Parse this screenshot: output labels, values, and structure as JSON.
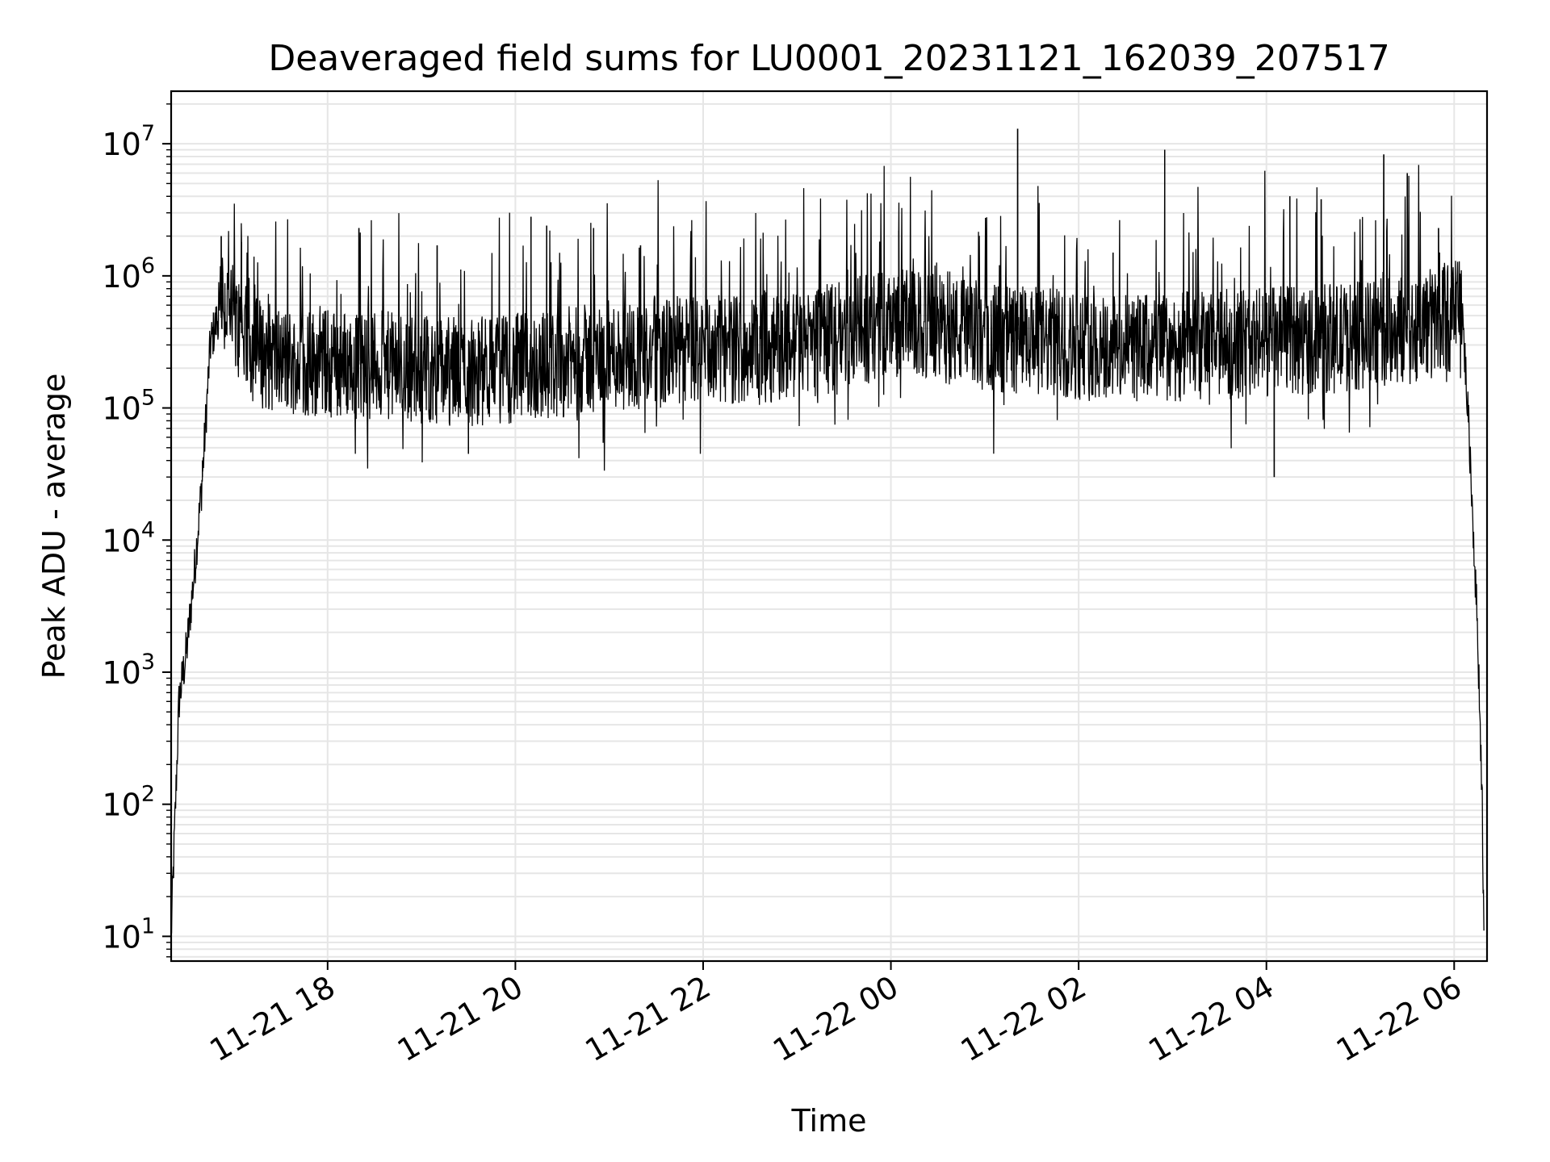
{
  "chart_data": {
    "type": "line",
    "title": "Deaveraged field sums for LU0001_20231121_162039_207517",
    "xlabel": "Time",
    "ylabel": "Peak ADU - average",
    "yscale": "log",
    "ylim": [
      6.5,
      25000000
    ],
    "xlim": [
      "2023-11-21 16:20",
      "2023-11-22 06:21"
    ],
    "grid": true,
    "line_color": "#000000",
    "grid_color": "#e6e6e6",
    "x_ticks": [
      "11-21 18",
      "11-21 20",
      "11-21 22",
      "11-22 00",
      "11-22 02",
      "11-22 04",
      "11-22 06"
    ],
    "x_tick_times": [
      "2023-11-21 18:00",
      "2023-11-21 20:00",
      "2023-11-21 22:00",
      "2023-11-22 00:00",
      "2023-11-22 02:00",
      "2023-11-22 04:00",
      "2023-11-22 06:00"
    ],
    "y_ticks": [
      {
        "base": "10",
        "exp": "1",
        "value": 10
      },
      {
        "base": "10",
        "exp": "2",
        "value": 100
      },
      {
        "base": "10",
        "exp": "3",
        "value": 1000
      },
      {
        "base": "10",
        "exp": "4",
        "value": 10000
      },
      {
        "base": "10",
        "exp": "5",
        "value": 100000
      },
      {
        "base": "10",
        "exp": "6",
        "value": 1000000
      },
      {
        "base": "10",
        "exp": "7",
        "value": 10000000
      }
    ],
    "series": [
      {
        "x": [
          "2023-11-21 16:20",
          "2023-11-21 16:25",
          "2023-11-21 16:30",
          "2023-11-21 16:35",
          "2023-11-21 16:40",
          "2023-11-21 16:45",
          "2023-11-21 16:50",
          "2023-11-21 16:55",
          "2023-11-21 17:00",
          "2023-11-21 17:10",
          "2023-11-21 17:20",
          "2023-11-21 17:30",
          "2023-11-21 17:45",
          "2023-11-21 18:00",
          "2023-11-21 18:30",
          "2023-11-21 19:00",
          "2023-11-21 19:30",
          "2023-11-21 20:00",
          "2023-11-21 20:30",
          "2023-11-21 21:00",
          "2023-11-21 21:30",
          "2023-11-21 22:00",
          "2023-11-21 22:30",
          "2023-11-21 23:00",
          "2023-11-21 23:30",
          "2023-11-22 00:00",
          "2023-11-22 00:30",
          "2023-11-22 01:00",
          "2023-11-22 01:30",
          "2023-11-22 02:00",
          "2023-11-22 02:30",
          "2023-11-22 03:00",
          "2023-11-22 03:30",
          "2023-11-22 04:00",
          "2023-11-22 04:30",
          "2023-11-22 05:00",
          "2023-11-22 05:30",
          "2023-11-22 06:00",
          "2023-11-22 06:05",
          "2023-11-22 06:10",
          "2023-11-22 06:15",
          "2023-11-22 06:18",
          "2023-11-22 06:19"
        ],
        "y": [
          10,
          600,
          1500,
          6000,
          30000,
          300000,
          500000,
          600000,
          450000,
          300000,
          250000,
          230000,
          220000,
          220000,
          210000,
          200000,
          190000,
          200000,
          220000,
          250000,
          260000,
          280000,
          280000,
          300000,
          350000,
          450000,
          400000,
          350000,
          320000,
          300000,
          280000,
          290000,
          300000,
          320000,
          330000,
          350000,
          400000,
          500000,
          600000,
          50000,
          2000,
          100,
          8
        ],
        "spikes": [
          {
            "x": "2023-11-21 16:40",
            "y": 40000
          },
          {
            "x": "2023-11-21 16:52",
            "y": 2000000
          },
          {
            "x": "2023-11-21 17:05",
            "y": 1800000
          },
          {
            "x": "2023-11-21 18:20",
            "y": 2300000
          },
          {
            "x": "2023-11-21 19:10",
            "y": 1700000
          },
          {
            "x": "2023-11-21 20:10",
            "y": 2800000
          },
          {
            "x": "2023-11-21 20:20",
            "y": 2400000
          },
          {
            "x": "2023-11-21 20:50",
            "y": 2300000
          },
          {
            "x": "2023-11-21 21:20",
            "y": 1700000
          },
          {
            "x": "2023-11-22 00:05",
            "y": 2200000
          },
          {
            "x": "2023-11-22 01:21",
            "y": 13000000
          },
          {
            "x": "2023-11-22 02:22",
            "y": 1500000
          },
          {
            "x": "2023-11-22 02:55",
            "y": 9000000
          },
          {
            "x": "2023-11-22 04:15",
            "y": 4000000
          },
          {
            "x": "2023-11-22 04:35",
            "y": 3800000
          },
          {
            "x": "2023-11-22 05:15",
            "y": 8300000
          },
          {
            "x": "2023-11-22 05:30",
            "y": 6000000
          },
          {
            "x": "2023-11-22 05:50",
            "y": 2300000
          },
          {
            "x": "2023-11-21 19:30",
            "y": 45000
          },
          {
            "x": "2023-11-22 04:05",
            "y": 30000
          }
        ]
      }
    ]
  }
}
